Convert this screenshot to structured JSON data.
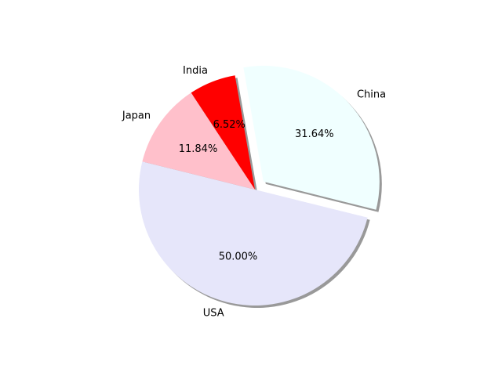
{
  "chart_data": {
    "type": "pie",
    "title": "",
    "shadow": true,
    "start_angle_deg": 166,
    "labels": [
      "USA",
      "China",
      "India",
      "Japan"
    ],
    "values": [
      50.0,
      31.64,
      6.52,
      11.84
    ],
    "value_labels": [
      "50.00%",
      "31.64%",
      "6.52%",
      "11.84%"
    ],
    "exploded": [
      false,
      true,
      false,
      false
    ],
    "colors": [
      "#e6e6fa",
      "#f0ffff",
      "#ff0000",
      "#ffc0cb"
    ]
  }
}
